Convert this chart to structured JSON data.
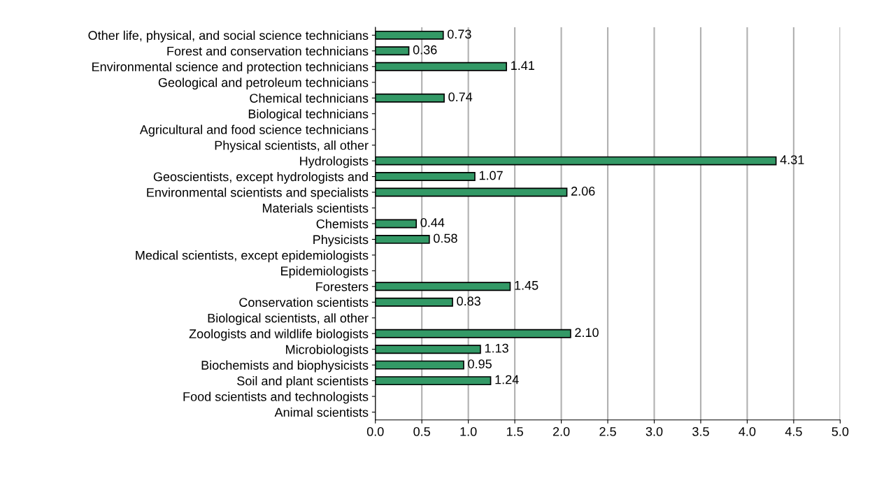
{
  "chart_data": {
    "type": "bar",
    "orientation": "horizontal",
    "categories": [
      "Other life, physical, and social science technicians",
      "Forest and conservation technicians",
      "Environmental science and protection technicians",
      "Geological and petroleum technicians",
      "Chemical technicians",
      "Biological technicians",
      "Agricultural and food science technicians",
      "Physical scientists, all other",
      "Hydrologists",
      "Geoscientists, except hydrologists and",
      "Environmental scientists and specialists",
      "Materials scientists",
      "Chemists",
      "Physicists",
      "Medical scientists, except epidemiologists",
      "Epidemiologists",
      "Foresters",
      "Conservation scientists",
      "Biological scientists, all other",
      "Zoologists and wildlife biologists",
      "Microbiologists",
      "Biochemists and biophysicists",
      "Soil and plant scientists",
      "Food scientists and technologists",
      "Animal scientists"
    ],
    "values": [
      0.73,
      0.36,
      1.41,
      null,
      0.74,
      null,
      null,
      null,
      4.31,
      1.07,
      2.06,
      null,
      0.44,
      0.58,
      null,
      null,
      1.45,
      0.83,
      null,
      2.1,
      1.13,
      0.95,
      1.24,
      null,
      null
    ],
    "value_labels": [
      "0.73",
      "0.36",
      "1.41",
      null,
      "0.74",
      null,
      null,
      null,
      "4.31",
      "1.07",
      "2.06",
      null,
      "0.44",
      "0.58",
      null,
      null,
      "1.45",
      "0.83",
      null,
      "2.10",
      "1.13",
      "0.95",
      "1.24",
      null,
      null
    ],
    "color": "#339966",
    "xlim": [
      0,
      5
    ],
    "xticks": [
      {
        "value": 0,
        "label": "0.0"
      },
      {
        "value": 0.5,
        "label": "0.5"
      },
      {
        "value": 1,
        "label": "1.0"
      },
      {
        "value": 1.5,
        "label": "1.5"
      },
      {
        "value": 2,
        "label": "2.0"
      },
      {
        "value": 2.5,
        "label": "2.5"
      },
      {
        "value": 3,
        "label": "3.0"
      },
      {
        "value": 3.5,
        "label": "3.5"
      },
      {
        "value": 4,
        "label": "4.0"
      },
      {
        "value": 4.5,
        "label": "4.5"
      },
      {
        "value": 5,
        "label": "5.0"
      }
    ],
    "grid": "x"
  }
}
